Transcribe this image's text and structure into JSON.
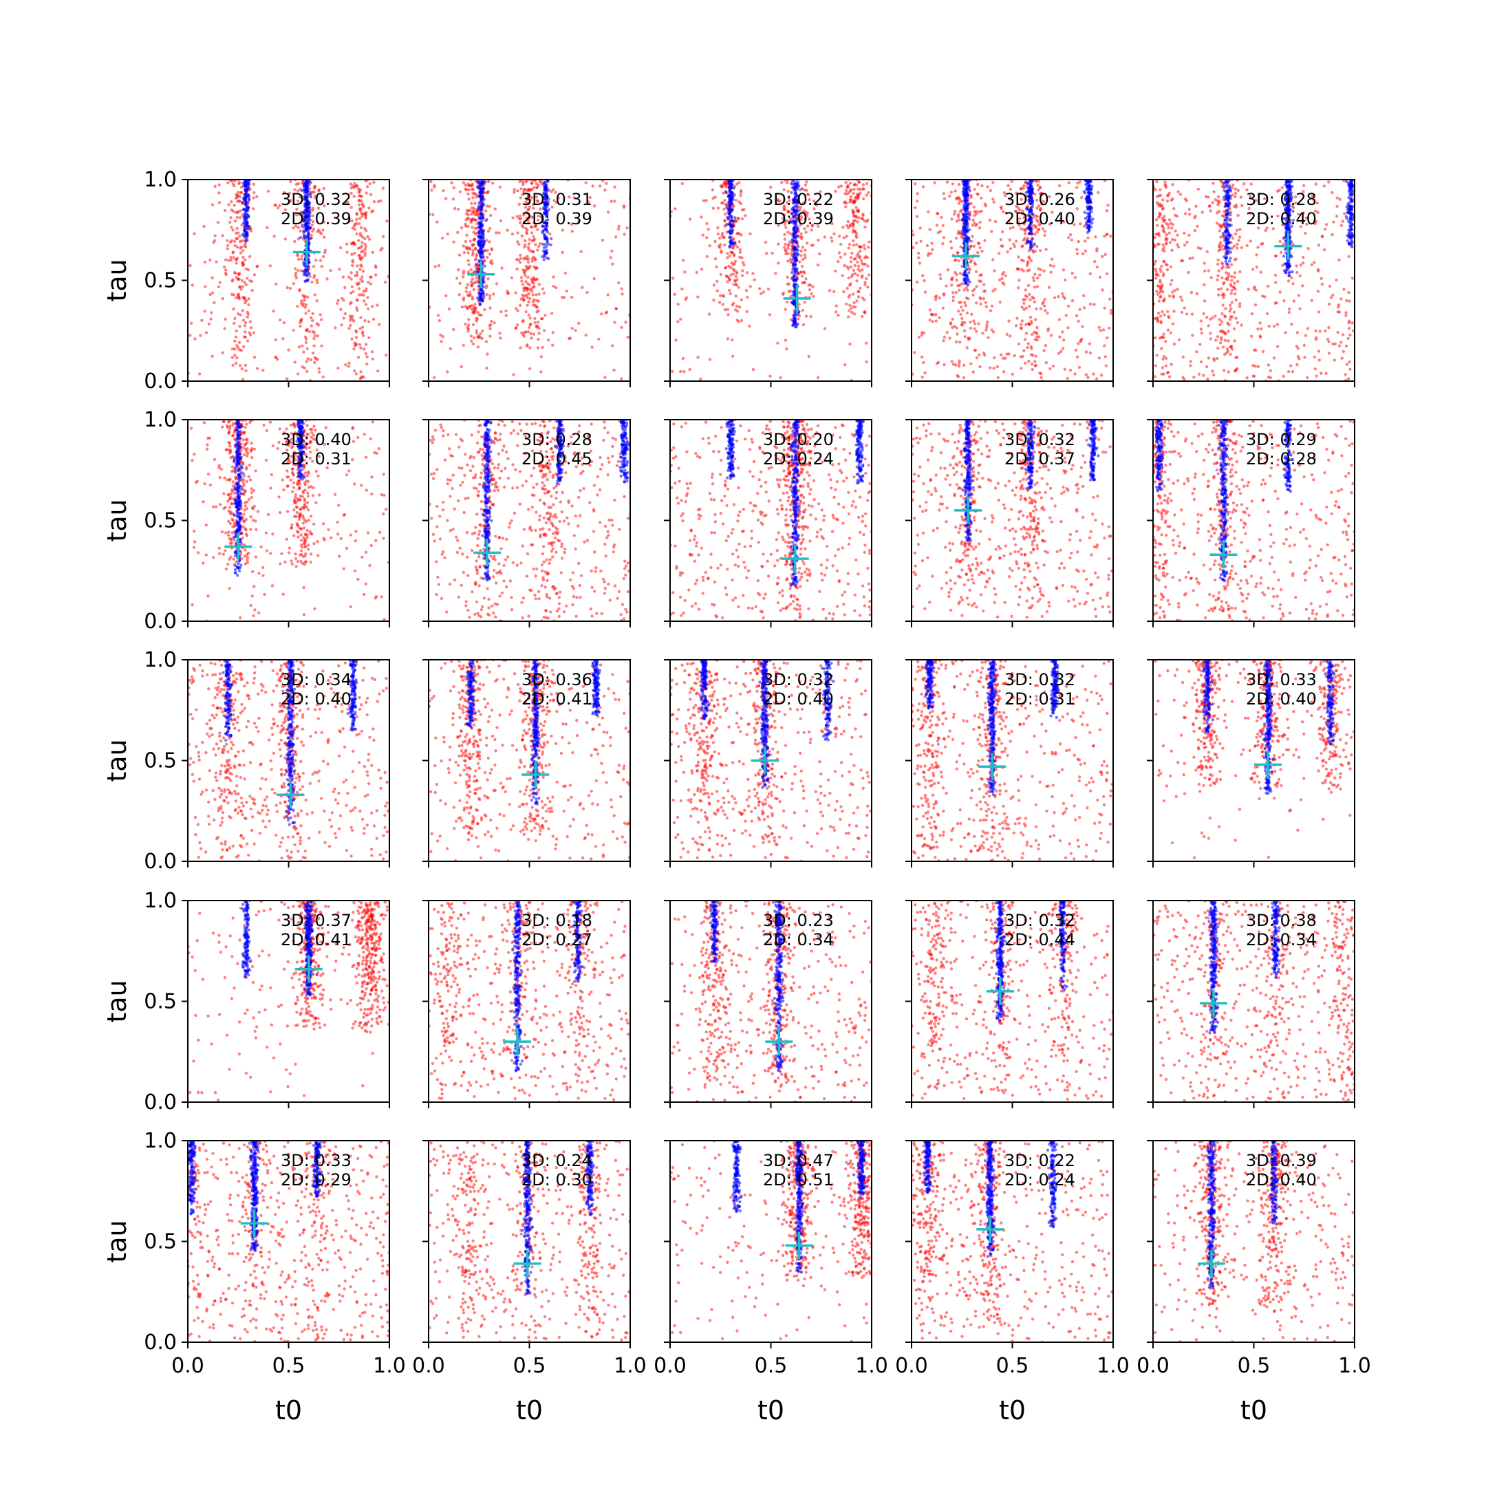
{
  "figure": {
    "xlabel": "t0",
    "ylabel": "tau",
    "x_ticks": [
      "0.0",
      "0.5",
      "1.0"
    ],
    "y_ticks": [
      "0.0",
      "0.5",
      "1.0"
    ],
    "colors": {
      "red_points": "#ff0000",
      "blue_points": "#0000ff",
      "cross": "#1fbfbf",
      "axes": "#000000"
    }
  },
  "chart_data": {
    "type": "scatter",
    "layout": "5x5 grid of subplots, shared axes",
    "xlim": [
      0,
      1
    ],
    "ylim": [
      0,
      1
    ],
    "xlabel": "t0",
    "ylabel": "tau",
    "grid": false,
    "panels": [
      {
        "row": 0,
        "col": 0,
        "label_3d": "3D: 0.32",
        "label_2d": "2D: 0.39",
        "cross": [
          0.59,
          0.64
        ],
        "blue_cols": [
          0.29,
          0.59
        ],
        "red_cols": [
          0.26,
          0.59,
          0.85
        ],
        "red_min": 0.0,
        "uniform": 0.25
      },
      {
        "row": 0,
        "col": 1,
        "label_3d": "3D: 0.31",
        "label_2d": "2D: 0.39",
        "cross": [
          0.26,
          0.53
        ],
        "blue_cols": [
          0.26,
          0.58
        ],
        "red_cols": [
          0.24,
          0.5
        ],
        "red_min": 0.15,
        "uniform": 0.3
      },
      {
        "row": 0,
        "col": 2,
        "label_3d": "3D: 0.22",
        "label_2d": "2D: 0.39",
        "cross": [
          0.63,
          0.41
        ],
        "blue_cols": [
          0.3,
          0.62
        ],
        "red_cols": [
          0.3,
          0.62,
          0.92
        ],
        "red_min": 0.3,
        "uniform": 0.25
      },
      {
        "row": 0,
        "col": 3,
        "label_3d": "3D: 0.26",
        "label_2d": "2D: 0.40",
        "cross": [
          0.27,
          0.62
        ],
        "blue_cols": [
          0.27,
          0.59,
          0.88
        ],
        "red_cols": [
          0.27,
          0.59
        ],
        "red_min": 0.0,
        "uniform": 0.55
      },
      {
        "row": 0,
        "col": 4,
        "label_3d": "3D: 0.28",
        "label_2d": "2D: 0.40",
        "cross": [
          0.67,
          0.67
        ],
        "blue_cols": [
          0.37,
          0.67,
          0.98
        ],
        "red_cols": [
          0.04,
          0.37
        ],
        "red_min": 0.0,
        "uniform": 0.55
      },
      {
        "row": 1,
        "col": 0,
        "label_3d": "3D: 0.40",
        "label_2d": "2D: 0.31",
        "cross": [
          0.25,
          0.37
        ],
        "blue_cols": [
          0.25,
          0.56
        ],
        "red_cols": [
          0.25,
          0.56
        ],
        "red_min": 0.25,
        "uniform": 0.25
      },
      {
        "row": 1,
        "col": 1,
        "label_3d": "3D: 0.28",
        "label_2d": "2D: 0.45",
        "cross": [
          0.29,
          0.34
        ],
        "blue_cols": [
          0.29,
          0.65,
          0.97
        ],
        "red_cols": [
          0.29,
          0.6
        ],
        "red_min": 0.0,
        "uniform": 0.55
      },
      {
        "row": 1,
        "col": 2,
        "label_3d": "3D: 0.20",
        "label_2d": "2D: 0.24",
        "cross": [
          0.62,
          0.31
        ],
        "blue_cols": [
          0.3,
          0.62,
          0.94
        ],
        "red_cols": [
          0.62
        ],
        "red_min": 0.0,
        "uniform": 0.55
      },
      {
        "row": 1,
        "col": 3,
        "label_3d": "3D: 0.32",
        "label_2d": "2D: 0.37",
        "cross": [
          0.28,
          0.55
        ],
        "blue_cols": [
          0.28,
          0.59,
          0.9
        ],
        "red_cols": [
          0.28,
          0.59
        ],
        "red_min": 0.05,
        "uniform": 0.5
      },
      {
        "row": 1,
        "col": 4,
        "label_3d": "3D: 0.29",
        "label_2d": "2D: 0.28",
        "cross": [
          0.35,
          0.33
        ],
        "blue_cols": [
          0.03,
          0.35,
          0.67
        ],
        "red_cols": [
          0.03,
          0.35
        ],
        "red_min": 0.0,
        "uniform": 0.5
      },
      {
        "row": 2,
        "col": 0,
        "label_3d": "3D: 0.34",
        "label_2d": "2D: 0.40",
        "cross": [
          0.51,
          0.33
        ],
        "blue_cols": [
          0.2,
          0.51,
          0.82
        ],
        "red_cols": [
          0.2,
          0.51
        ],
        "red_min": 0.0,
        "uniform": 0.55
      },
      {
        "row": 2,
        "col": 1,
        "label_3d": "3D: 0.36",
        "label_2d": "2D: 0.41",
        "cross": [
          0.53,
          0.43
        ],
        "blue_cols": [
          0.21,
          0.53,
          0.83
        ],
        "red_cols": [
          0.21,
          0.53
        ],
        "red_min": 0.1,
        "uniform": 0.4
      },
      {
        "row": 2,
        "col": 2,
        "label_3d": "3D: 0.32",
        "label_2d": "2D: 0.40",
        "cross": [
          0.47,
          0.5
        ],
        "blue_cols": [
          0.17,
          0.47,
          0.78
        ],
        "red_cols": [
          0.17,
          0.47
        ],
        "red_min": 0.0,
        "uniform": 0.5
      },
      {
        "row": 2,
        "col": 3,
        "label_3d": "3D: 0.32",
        "label_2d": "2D: 0.31",
        "cross": [
          0.4,
          0.47
        ],
        "blue_cols": [
          0.09,
          0.4,
          0.71
        ],
        "red_cols": [
          0.09,
          0.4
        ],
        "red_min": 0.0,
        "uniform": 0.45
      },
      {
        "row": 2,
        "col": 4,
        "label_3d": "3D: 0.33",
        "label_2d": "2D: 0.40",
        "cross": [
          0.57,
          0.48
        ],
        "blue_cols": [
          0.27,
          0.57,
          0.88
        ],
        "red_cols": [
          0.27,
          0.57,
          0.88
        ],
        "red_min": 0.35,
        "uniform": 0.2
      },
      {
        "row": 3,
        "col": 0,
        "label_3d": "3D: 0.37",
        "label_2d": "2D: 0.41",
        "cross": [
          0.6,
          0.66
        ],
        "blue_cols": [
          0.29,
          0.6
        ],
        "red_cols": [
          0.6,
          0.9
        ],
        "red_min": 0.35,
        "uniform": 0.2
      },
      {
        "row": 3,
        "col": 1,
        "label_3d": "3D: 0.18",
        "label_2d": "2D: 0.27",
        "cross": [
          0.44,
          0.3
        ],
        "blue_cols": [
          0.44,
          0.74
        ],
        "red_cols": [
          0.1,
          0.44,
          0.74
        ],
        "red_min": 0.0,
        "uniform": 0.5
      },
      {
        "row": 3,
        "col": 2,
        "label_3d": "3D: 0.23",
        "label_2d": "2D: 0.34",
        "cross": [
          0.54,
          0.3
        ],
        "blue_cols": [
          0.22,
          0.54
        ],
        "red_cols": [
          0.22,
          0.54
        ],
        "red_min": 0.05,
        "uniform": 0.45
      },
      {
        "row": 3,
        "col": 3,
        "label_3d": "3D: 0.32",
        "label_2d": "2D: 0.44",
        "cross": [
          0.44,
          0.55
        ],
        "blue_cols": [
          0.44,
          0.75
        ],
        "red_cols": [
          0.12,
          0.44,
          0.75
        ],
        "red_min": 0.0,
        "uniform": 0.45
      },
      {
        "row": 3,
        "col": 4,
        "label_3d": "3D: 0.38",
        "label_2d": "2D: 0.34",
        "cross": [
          0.3,
          0.49
        ],
        "blue_cols": [
          0.3,
          0.61
        ],
        "red_cols": [
          0.3,
          0.61,
          0.95
        ],
        "red_min": 0.0,
        "uniform": 0.55
      },
      {
        "row": 4,
        "col": 0,
        "label_3d": "3D: 0.33",
        "label_2d": "2D: 0.29",
        "cross": [
          0.33,
          0.59
        ],
        "blue_cols": [
          0.02,
          0.33,
          0.64
        ],
        "red_cols": [
          0.02,
          0.33,
          0.64
        ],
        "red_min": 0.0,
        "uniform": 0.55
      },
      {
        "row": 4,
        "col": 1,
        "label_3d": "3D: 0.24",
        "label_2d": "2D: 0.30",
        "cross": [
          0.49,
          0.39
        ],
        "blue_cols": [
          0.49,
          0.8
        ],
        "red_cols": [
          0.2,
          0.49,
          0.8
        ],
        "red_min": 0.0,
        "uniform": 0.45
      },
      {
        "row": 4,
        "col": 2,
        "label_3d": "3D: 0.47",
        "label_2d": "2D: 0.51",
        "cross": [
          0.64,
          0.48
        ],
        "blue_cols": [
          0.33,
          0.64,
          0.95
        ],
        "red_cols": [
          0.64,
          0.95
        ],
        "red_min": 0.3,
        "uniform": 0.25
      },
      {
        "row": 4,
        "col": 3,
        "label_3d": "3D: 0.22",
        "label_2d": "2D: 0.24",
        "cross": [
          0.39,
          0.56
        ],
        "blue_cols": [
          0.08,
          0.39,
          0.7
        ],
        "red_cols": [
          0.08,
          0.39
        ],
        "red_min": 0.0,
        "uniform": 0.45
      },
      {
        "row": 4,
        "col": 4,
        "label_3d": "3D: 0.39",
        "label_2d": "2D: 0.40",
        "cross": [
          0.29,
          0.39
        ],
        "blue_cols": [
          0.29,
          0.6
        ],
        "red_cols": [
          0.29,
          0.6
        ],
        "red_min": 0.15,
        "uniform": 0.4
      }
    ]
  }
}
